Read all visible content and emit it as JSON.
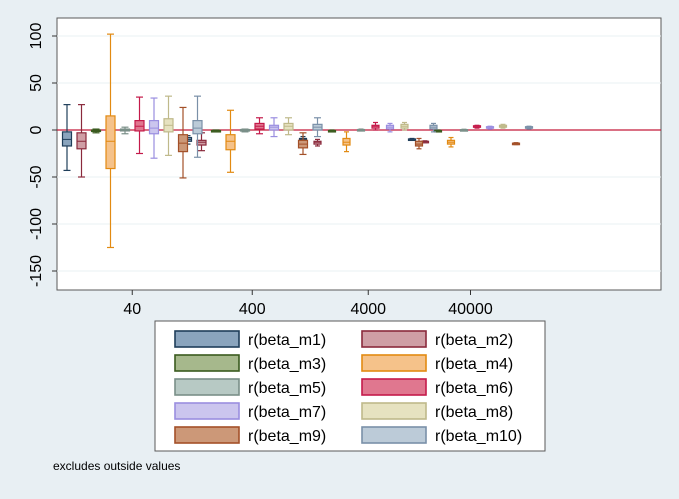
{
  "chart_data": {
    "type": "box",
    "title": "",
    "xlabel": "",
    "ylabel": "",
    "ylim": [
      -160,
      110
    ],
    "yticks": [
      100,
      50,
      0,
      -50,
      -100,
      -150
    ],
    "categories": [
      "40",
      "400",
      "4000",
      "40000"
    ],
    "reference_line": {
      "y": 0,
      "color": "#c41a3b"
    },
    "grid": true,
    "legend_position": "bottom",
    "series": [
      {
        "name": "r(beta_m1)",
        "fill": "#8aa4bd",
        "stroke": "#1f3e5a",
        "boxes": [
          {
            "whisker_low": -43,
            "q1": -17,
            "median": -10,
            "q3": -2,
            "whisker_high": 27
          },
          {
            "whisker_low": -15,
            "q1": -12,
            "median": -10,
            "q3": -8,
            "whisker_high": -6
          },
          {
            "whisker_low": -14,
            "q1": -12,
            "median": -10,
            "q3": -9,
            "whisker_high": -7
          },
          {
            "whisker_low": -11,
            "q1": -10.5,
            "median": -10,
            "q3": -9.5,
            "whisker_high": -9
          }
        ]
      },
      {
        "name": "r(beta_m2)",
        "fill": "#cf9ea5",
        "stroke": "#8a2a3c",
        "boxes": [
          {
            "whisker_low": -50,
            "q1": -20,
            "median": -12,
            "q3": -3,
            "whisker_high": 27
          },
          {
            "whisker_low": -22,
            "q1": -16,
            "median": -13,
            "q3": -11,
            "whisker_high": -3
          },
          {
            "whisker_low": -17,
            "q1": -15,
            "median": -13,
            "q3": -12,
            "whisker_high": -10
          },
          {
            "whisker_low": -13.5,
            "q1": -13,
            "median": -12.5,
            "q3": -12,
            "whisker_high": -11.5
          }
        ]
      },
      {
        "name": "r(beta_m3)",
        "fill": "#a6b88c",
        "stroke": "#3a5a1e",
        "boxes": [
          {
            "whisker_low": -3,
            "q1": -1.5,
            "median": -1,
            "q3": 0,
            "whisker_high": 1
          },
          {
            "whisker_low": -2,
            "q1": -1.2,
            "median": -1,
            "q3": -0.5,
            "whisker_high": 0
          },
          {
            "whisker_low": -2,
            "q1": -1.5,
            "median": -1,
            "q3": -0.5,
            "whisker_high": 0
          },
          {
            "whisker_low": -2,
            "q1": -1.5,
            "median": -1,
            "q3": -0.5,
            "whisker_high": 0
          }
        ]
      },
      {
        "name": "r(beta_m4)",
        "fill": "#f5c28a",
        "stroke": "#e28a12",
        "boxes": [
          {
            "whisker_low": -125,
            "q1": -41,
            "median": -12,
            "q3": 15,
            "whisker_high": 102
          },
          {
            "whisker_low": -45,
            "q1": -21,
            "median": -12,
            "q3": -5,
            "whisker_high": 21
          },
          {
            "whisker_low": -23,
            "q1": -16,
            "median": -13,
            "q3": -9,
            "whisker_high": -2
          },
          {
            "whisker_low": -18,
            "q1": -15,
            "median": -13,
            "q3": -11,
            "whisker_high": -8
          }
        ]
      },
      {
        "name": "r(beta_m5)",
        "fill": "#b7c9c4",
        "stroke": "#7a8f88",
        "boxes": [
          {
            "whisker_low": -4,
            "q1": -1,
            "median": 0,
            "q3": 1,
            "whisker_high": 3
          },
          {
            "whisker_low": -2,
            "q1": -1,
            "median": 0,
            "q3": 0.5,
            "whisker_high": 1
          },
          {
            "whisker_low": -1,
            "q1": -0.5,
            "median": 0,
            "q3": 0.5,
            "whisker_high": 1
          },
          {
            "whisker_low": -0.8,
            "q1": -0.4,
            "median": 0,
            "q3": 0.4,
            "whisker_high": 0.8
          }
        ]
      },
      {
        "name": "r(beta_m6)",
        "fill": "#e0778f",
        "stroke": "#c41a4a",
        "boxes": [
          {
            "whisker_low": -25,
            "q1": -1,
            "median": 4,
            "q3": 10,
            "whisker_high": 35
          },
          {
            "whisker_low": -4,
            "q1": 1,
            "median": 4,
            "q3": 7,
            "whisker_high": 13
          },
          {
            "whisker_low": 0,
            "q1": 2,
            "median": 4,
            "q3": 5,
            "whisker_high": 8
          },
          {
            "whisker_low": 2,
            "q1": 3,
            "median": 4,
            "q3": 4.5,
            "whisker_high": 5
          }
        ]
      },
      {
        "name": "r(beta_m7)",
        "fill": "#cbc5ee",
        "stroke": "#9a8ee0",
        "boxes": [
          {
            "whisker_low": -30,
            "q1": -4,
            "median": 2,
            "q3": 10,
            "whisker_high": 34
          },
          {
            "whisker_low": -7,
            "q1": 0,
            "median": 3,
            "q3": 5,
            "whisker_high": 13
          },
          {
            "whisker_low": -2,
            "q1": 1,
            "median": 3,
            "q3": 5,
            "whisker_high": 7
          },
          {
            "whisker_low": 1,
            "q1": 2,
            "median": 3,
            "q3": 3.5,
            "whisker_high": 4
          }
        ]
      },
      {
        "name": "r(beta_m8)",
        "fill": "#e6e2c0",
        "stroke": "#bfb98a",
        "boxes": [
          {
            "whisker_low": -27,
            "q1": -2,
            "median": 5,
            "q3": 12,
            "whisker_high": 36
          },
          {
            "whisker_low": -5,
            "q1": 0,
            "median": 4,
            "q3": 7,
            "whisker_high": 13
          },
          {
            "whisker_low": 0,
            "q1": 2,
            "median": 4,
            "q3": 6,
            "whisker_high": 8
          },
          {
            "whisker_low": 2,
            "q1": 3,
            "median": 4,
            "q3": 5,
            "whisker_high": 6
          }
        ]
      },
      {
        "name": "r(beta_m9)",
        "fill": "#cc9878",
        "stroke": "#a35028",
        "boxes": [
          {
            "whisker_low": -51,
            "q1": -23,
            "median": -14,
            "q3": -5,
            "whisker_high": 24
          },
          {
            "whisker_low": -26,
            "q1": -19,
            "median": -15,
            "q3": -11,
            "whisker_high": -3
          },
          {
            "whisker_low": -20,
            "q1": -17,
            "median": -15,
            "q3": -12,
            "whisker_high": -9
          },
          {
            "whisker_low": -15.5,
            "q1": -15,
            "median": -14.5,
            "q3": -14,
            "whisker_high": -13.5
          }
        ]
      },
      {
        "name": "r(beta_m10)",
        "fill": "#bccbd8",
        "stroke": "#7a90a8",
        "boxes": [
          {
            "whisker_low": -29,
            "q1": -4,
            "median": 2,
            "q3": 10,
            "whisker_high": 36
          },
          {
            "whisker_low": -7,
            "q1": 0,
            "median": 3,
            "q3": 6,
            "whisker_high": 13
          },
          {
            "whisker_low": -2,
            "q1": 1,
            "median": 3,
            "q3": 5,
            "whisker_high": 7
          },
          {
            "whisker_low": 1,
            "q1": 2,
            "median": 3,
            "q3": 3.5,
            "whisker_high": 4
          }
        ]
      }
    ]
  },
  "note": "excludes outside values"
}
